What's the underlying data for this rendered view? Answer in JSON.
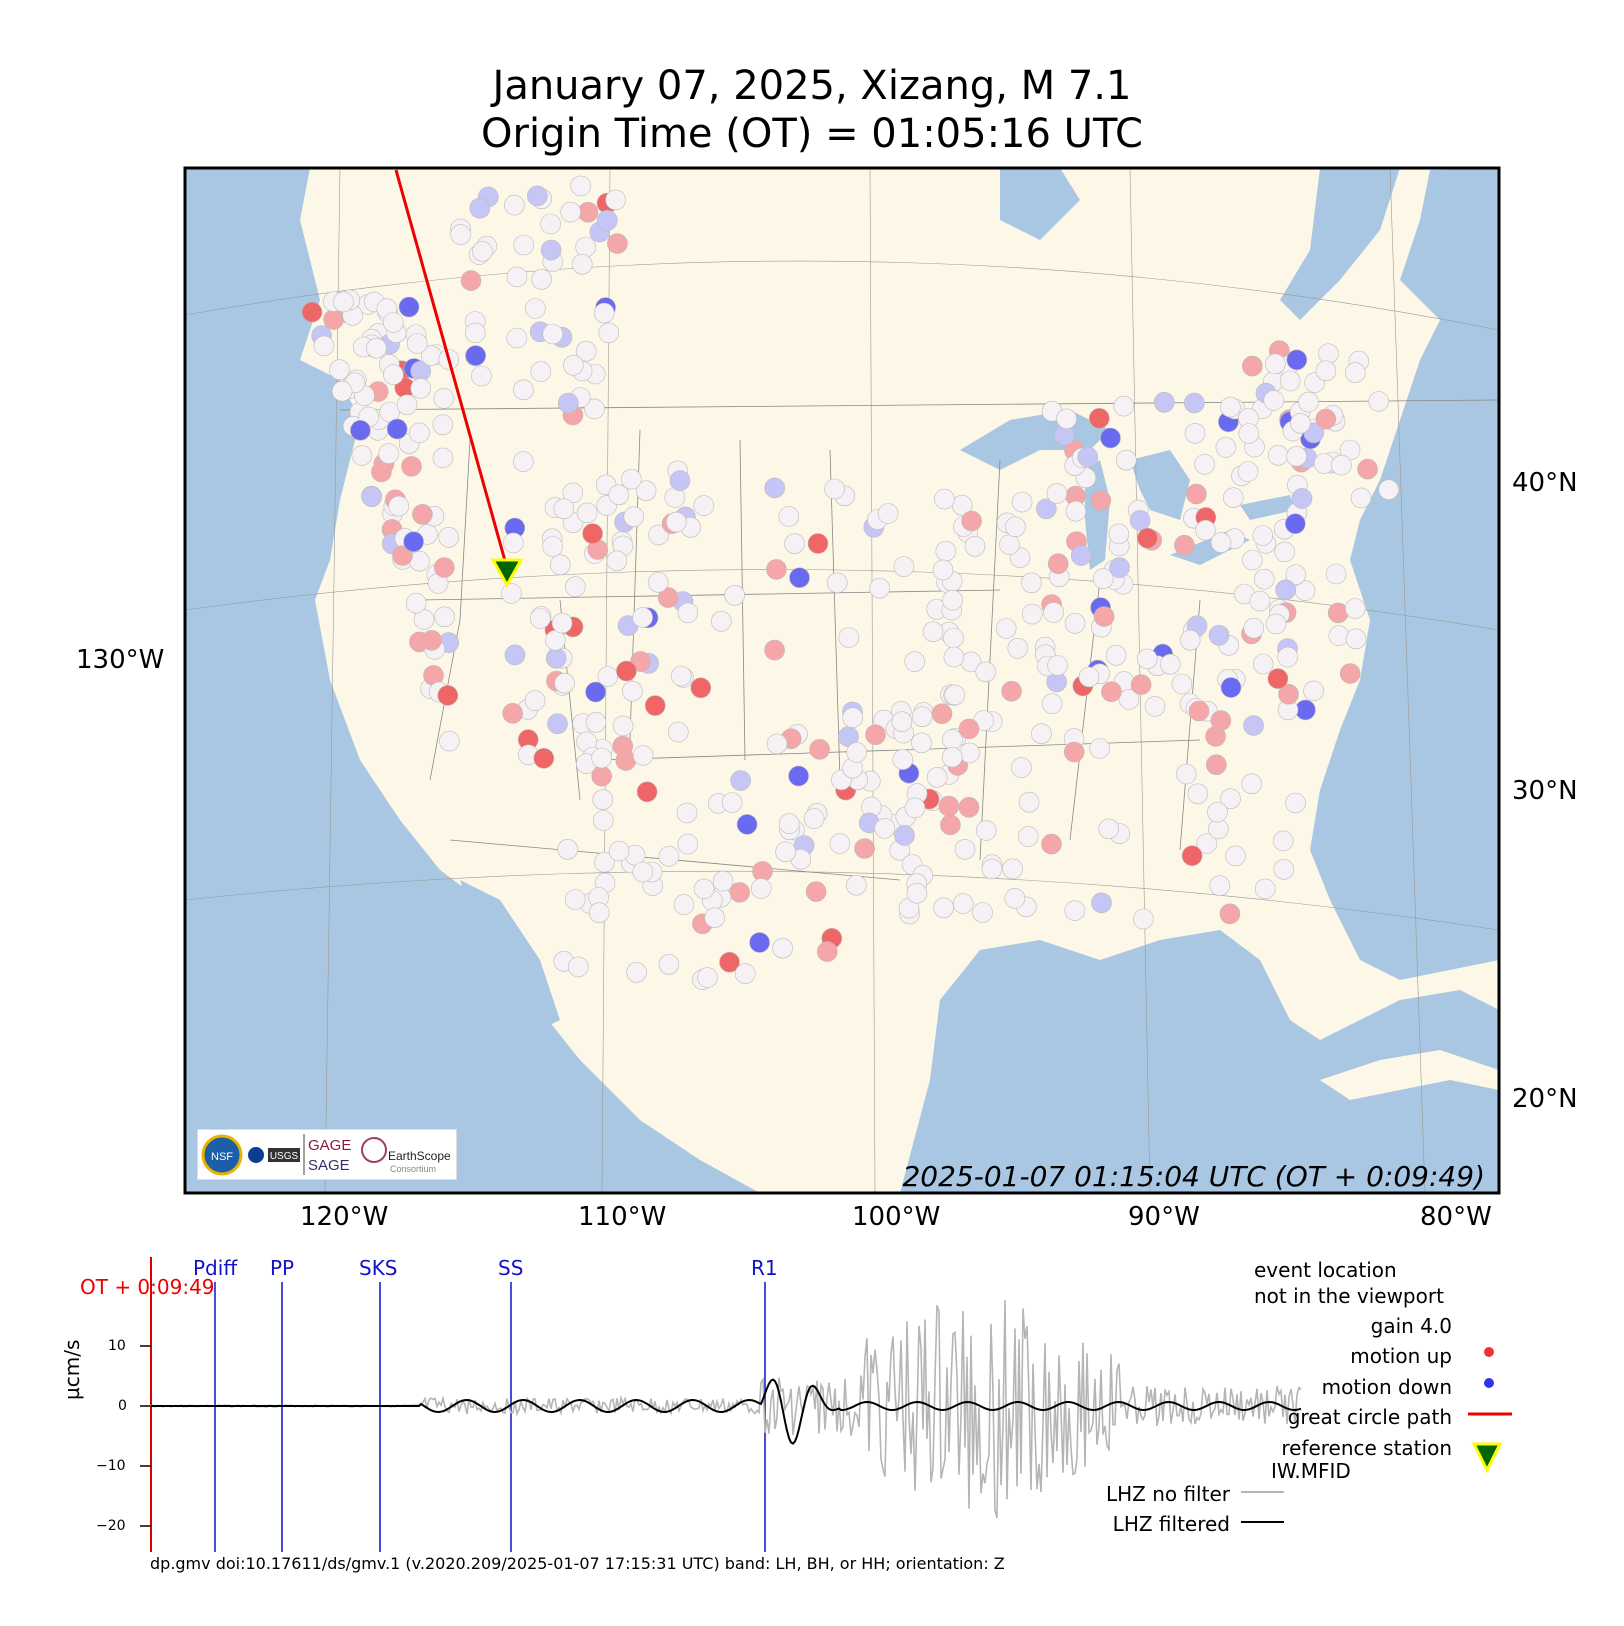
{
  "title": {
    "line1": "January 07, 2025, Xizang, M 7.1",
    "line2": "Origin Time (OT) = 01:05:16 UTC"
  },
  "map": {
    "timestamp": "2025-01-07 01:15:04 UTC (OT + 0:09:49)",
    "lon_labels": [
      "120°W",
      "110°W",
      "100°W",
      "90°W",
      "80°W"
    ],
    "lat_labels": [
      "40°N",
      "30°N",
      "20°N"
    ],
    "left_label": "130°W",
    "colors": {
      "land": "#fcf7e6",
      "water": "#a9c7e2",
      "motion_up": "#ee3333",
      "motion_down": "#3333ee",
      "path": "#ee0000"
    },
    "logos": {
      "gage": "GAGE",
      "sage": "SAGE",
      "earthscope": "EarthScope",
      "consortium": "Consortium",
      "usgs": "USGS",
      "nsf": "NSF"
    }
  },
  "trace": {
    "ot_label": "OT + 0:09:49",
    "ylabel": "µcm/s",
    "yticks": [
      "10",
      "0",
      "−10",
      "−20"
    ],
    "phases": [
      "Pdiff",
      "PP",
      "SKS",
      "SS",
      "R1"
    ],
    "legend": {
      "event": "event location",
      "event2": "not in the viewport",
      "gain": "gain  4.0",
      "up": "motion up",
      "down": "motion down",
      "path": "great circle path",
      "ref": "reference station",
      "ref2": "IW.MFID",
      "nofilter": "LHZ no filter",
      "filtered": "LHZ filtered"
    }
  },
  "footer": "dp.gmv doi:10.17611/ds/gmv.1 (v.2020.209/2025-01-07 17:15:31 UTC) band: LH, BH, or HH; orientation: Z"
}
